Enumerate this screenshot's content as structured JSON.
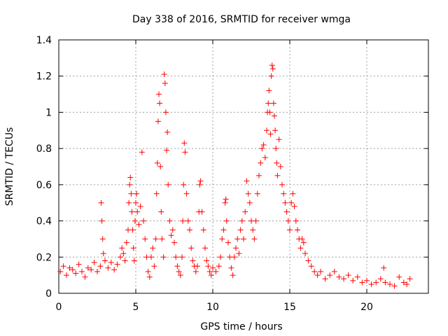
{
  "chart_data": {
    "type": "scatter",
    "title": "Day 338 of 2016, SRMTID for receiver wmga",
    "xlabel": "GPS time / hours",
    "ylabel": "SRMTID / TECUs",
    "xlim": [
      0,
      24
    ],
    "ylim": [
      0,
      1.4
    ],
    "xticks": [
      0,
      5,
      10,
      15,
      20
    ],
    "xtick_labels": [
      "0",
      "5",
      "10",
      "15",
      "20"
    ],
    "yticks": [
      0,
      0.2,
      0.4,
      0.6,
      0.8,
      1.0,
      1.2,
      1.4
    ],
    "ytick_labels": [
      "0",
      "0.2",
      "0.4",
      "0.6",
      "0.8",
      "1",
      "1.2",
      "1.4"
    ],
    "grid": true,
    "marker": "+",
    "color": "#ff0000",
    "series": [
      {
        "name": "SRMTID",
        "points": [
          [
            0.1,
            0.12
          ],
          [
            0.3,
            0.15
          ],
          [
            0.5,
            0.1
          ],
          [
            0.7,
            0.14
          ],
          [
            0.9,
            0.13
          ],
          [
            1.1,
            0.11
          ],
          [
            1.3,
            0.16
          ],
          [
            1.5,
            0.12
          ],
          [
            1.7,
            0.09
          ],
          [
            1.9,
            0.14
          ],
          [
            2.1,
            0.13
          ],
          [
            2.3,
            0.17
          ],
          [
            2.5,
            0.12
          ],
          [
            2.7,
            0.15
          ],
          [
            2.75,
            0.5
          ],
          [
            2.8,
            0.4
          ],
          [
            2.85,
            0.3
          ],
          [
            2.9,
            0.22
          ],
          [
            3.0,
            0.18
          ],
          [
            3.2,
            0.14
          ],
          [
            3.4,
            0.17
          ],
          [
            3.6,
            0.13
          ],
          [
            3.8,
            0.16
          ],
          [
            4.0,
            0.2
          ],
          [
            4.1,
            0.25
          ],
          [
            4.2,
            0.22
          ],
          [
            4.3,
            0.18
          ],
          [
            4.4,
            0.28
          ],
          [
            4.5,
            0.35
          ],
          [
            4.55,
            0.5
          ],
          [
            4.6,
            0.6
          ],
          [
            4.65,
            0.64
          ],
          [
            4.7,
            0.55
          ],
          [
            4.75,
            0.45
          ],
          [
            4.8,
            0.35
          ],
          [
            4.85,
            0.25
          ],
          [
            4.9,
            0.18
          ],
          [
            4.95,
            0.4
          ],
          [
            5.0,
            0.5
          ],
          [
            5.05,
            0.55
          ],
          [
            5.1,
            0.45
          ],
          [
            5.2,
            0.38
          ],
          [
            5.3,
            0.48
          ],
          [
            5.4,
            0.78
          ],
          [
            5.5,
            0.4
          ],
          [
            5.6,
            0.3
          ],
          [
            5.7,
            0.2
          ],
          [
            5.8,
            0.12
          ],
          [
            5.9,
            0.09
          ],
          [
            6.0,
            0.2
          ],
          [
            6.1,
            0.25
          ],
          [
            6.2,
            0.15
          ],
          [
            6.3,
            0.3
          ],
          [
            6.35,
            0.55
          ],
          [
            6.4,
            0.72
          ],
          [
            6.45,
            0.95
          ],
          [
            6.5,
            1.1
          ],
          [
            6.55,
            1.05
          ],
          [
            6.6,
            0.7
          ],
          [
            6.65,
            0.45
          ],
          [
            6.7,
            0.3
          ],
          [
            6.8,
            0.2
          ],
          [
            6.85,
            1.21
          ],
          [
            6.9,
            1.16
          ],
          [
            6.95,
            1.0
          ],
          [
            7.0,
            0.79
          ],
          [
            7.05,
            0.89
          ],
          [
            7.1,
            0.6
          ],
          [
            7.2,
            0.4
          ],
          [
            7.3,
            0.32
          ],
          [
            7.4,
            0.35
          ],
          [
            7.5,
            0.28
          ],
          [
            7.6,
            0.2
          ],
          [
            7.7,
            0.15
          ],
          [
            7.8,
            0.12
          ],
          [
            7.9,
            0.1
          ],
          [
            8.0,
            0.2
          ],
          [
            8.05,
            0.4
          ],
          [
            8.1,
            0.6
          ],
          [
            8.15,
            0.83
          ],
          [
            8.2,
            0.78
          ],
          [
            8.3,
            0.55
          ],
          [
            8.4,
            0.4
          ],
          [
            8.5,
            0.35
          ],
          [
            8.6,
            0.25
          ],
          [
            8.7,
            0.18
          ],
          [
            8.8,
            0.15
          ],
          [
            8.9,
            0.12
          ],
          [
            9.0,
            0.15
          ],
          [
            9.1,
            0.45
          ],
          [
            9.15,
            0.6
          ],
          [
            9.2,
            0.62
          ],
          [
            9.3,
            0.45
          ],
          [
            9.4,
            0.35
          ],
          [
            9.5,
            0.25
          ],
          [
            9.6,
            0.18
          ],
          [
            9.7,
            0.15
          ],
          [
            9.8,
            0.12
          ],
          [
            9.9,
            0.1
          ],
          [
            10.0,
            0.14
          ],
          [
            10.2,
            0.12
          ],
          [
            10.4,
            0.15
          ],
          [
            10.5,
            0.2
          ],
          [
            10.6,
            0.3
          ],
          [
            10.7,
            0.35
          ],
          [
            10.8,
            0.5
          ],
          [
            10.85,
            0.52
          ],
          [
            10.9,
            0.4
          ],
          [
            11.0,
            0.28
          ],
          [
            11.1,
            0.2
          ],
          [
            11.2,
            0.14
          ],
          [
            11.3,
            0.1
          ],
          [
            11.4,
            0.2
          ],
          [
            11.5,
            0.25
          ],
          [
            11.6,
            0.3
          ],
          [
            11.7,
            0.22
          ],
          [
            11.8,
            0.35
          ],
          [
            11.9,
            0.4
          ],
          [
            12.0,
            0.3
          ],
          [
            12.1,
            0.45
          ],
          [
            12.2,
            0.62
          ],
          [
            12.3,
            0.55
          ],
          [
            12.4,
            0.5
          ],
          [
            12.5,
            0.4
          ],
          [
            12.6,
            0.35
          ],
          [
            12.7,
            0.3
          ],
          [
            12.8,
            0.4
          ],
          [
            12.9,
            0.55
          ],
          [
            13.0,
            0.65
          ],
          [
            13.1,
            0.72
          ],
          [
            13.2,
            0.8
          ],
          [
            13.3,
            0.82
          ],
          [
            13.4,
            0.75
          ],
          [
            13.5,
            0.9
          ],
          [
            13.55,
            1.0
          ],
          [
            13.6,
            1.05
          ],
          [
            13.65,
            1.12
          ],
          [
            13.7,
            1.0
          ],
          [
            13.75,
            0.88
          ],
          [
            13.8,
            1.2
          ],
          [
            13.85,
            1.26
          ],
          [
            13.9,
            1.24
          ],
          [
            13.95,
            1.05
          ],
          [
            14.0,
            0.98
          ],
          [
            14.05,
            0.9
          ],
          [
            14.1,
            0.8
          ],
          [
            14.15,
            0.72
          ],
          [
            14.2,
            0.65
          ],
          [
            14.3,
            0.85
          ],
          [
            14.4,
            0.7
          ],
          [
            14.5,
            0.6
          ],
          [
            14.6,
            0.55
          ],
          [
            14.7,
            0.5
          ],
          [
            14.8,
            0.45
          ],
          [
            14.9,
            0.4
          ],
          [
            15.0,
            0.35
          ],
          [
            15.1,
            0.5
          ],
          [
            15.2,
            0.55
          ],
          [
            15.3,
            0.48
          ],
          [
            15.4,
            0.4
          ],
          [
            15.5,
            0.35
          ],
          [
            15.6,
            0.3
          ],
          [
            15.7,
            0.25
          ],
          [
            15.8,
            0.3
          ],
          [
            15.9,
            0.28
          ],
          [
            16.0,
            0.22
          ],
          [
            16.2,
            0.18
          ],
          [
            16.4,
            0.15
          ],
          [
            16.6,
            0.12
          ],
          [
            16.8,
            0.1
          ],
          [
            17.0,
            0.12
          ],
          [
            17.3,
            0.08
          ],
          [
            17.6,
            0.1
          ],
          [
            17.9,
            0.12
          ],
          [
            18.2,
            0.09
          ],
          [
            18.5,
            0.08
          ],
          [
            18.8,
            0.1
          ],
          [
            19.1,
            0.07
          ],
          [
            19.4,
            0.09
          ],
          [
            19.7,
            0.06
          ],
          [
            20.0,
            0.07
          ],
          [
            20.3,
            0.05
          ],
          [
            20.6,
            0.06
          ],
          [
            20.9,
            0.08
          ],
          [
            21.1,
            0.14
          ],
          [
            21.2,
            0.06
          ],
          [
            21.5,
            0.05
          ],
          [
            21.8,
            0.04
          ],
          [
            22.1,
            0.09
          ],
          [
            22.4,
            0.06
          ],
          [
            22.6,
            0.05
          ],
          [
            22.8,
            0.08
          ]
        ]
      }
    ]
  }
}
